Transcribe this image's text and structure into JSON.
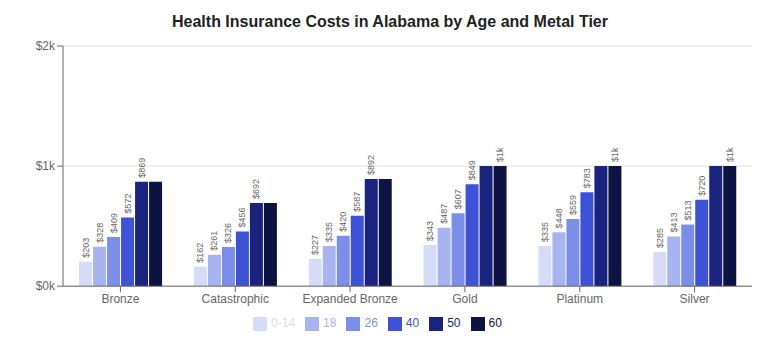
{
  "chart_data": {
    "type": "bar",
    "title": "Health Insurance Costs in Alabama by Age and Metal Tier",
    "categories": [
      "Bronze",
      "Catastrophic",
      "Expanded Bronze",
      "Gold",
      "Platinum",
      "Silver"
    ],
    "series": [
      {
        "name": "0-14",
        "color": "#d6dcf7",
        "values": [
          203,
          162,
          227,
          343,
          335,
          285
        ],
        "value_labels": [
          "$203",
          "$162",
          "$227",
          "$343",
          "$335",
          "$285"
        ]
      },
      {
        "name": "18",
        "color": "#a8b4f0",
        "values": [
          328,
          261,
          335,
          487,
          448,
          413
        ],
        "value_labels": [
          "$328",
          "$261",
          "$335",
          "$487",
          "$448",
          "$413"
        ]
      },
      {
        "name": "26",
        "color": "#7b8fe8",
        "values": [
          409,
          326,
          420,
          607,
          559,
          513
        ],
        "value_labels": [
          "$409",
          "$326",
          "$420",
          "$607",
          "$559",
          "$513"
        ]
      },
      {
        "name": "40",
        "color": "#3d52d5",
        "values": [
          572,
          456,
          587,
          849,
          783,
          720
        ],
        "value_labels": [
          "$572",
          "$456",
          "$587",
          "$849",
          "$783",
          "$720"
        ]
      },
      {
        "name": "50",
        "color": "#1a237e",
        "values": [
          869,
          692,
          892,
          1000,
          1000,
          1000
        ],
        "value_labels": [
          "$869",
          "$692",
          "$892",
          null,
          null,
          null
        ]
      },
      {
        "name": "60",
        "color": "#0d1442",
        "values": [
          869,
          692,
          892,
          1000,
          1000,
          1000
        ],
        "value_labels": [
          null,
          null,
          null,
          "$1k",
          "$1k",
          "$1k"
        ]
      }
    ],
    "ylim": [
      0,
      2000
    ],
    "yticks": [
      {
        "value": 0,
        "label": "$0k"
      },
      {
        "value": 1000,
        "label": "$1k"
      },
      {
        "value": 2000,
        "label": "$2k"
      }
    ],
    "grid": true,
    "data_labels": true
  }
}
